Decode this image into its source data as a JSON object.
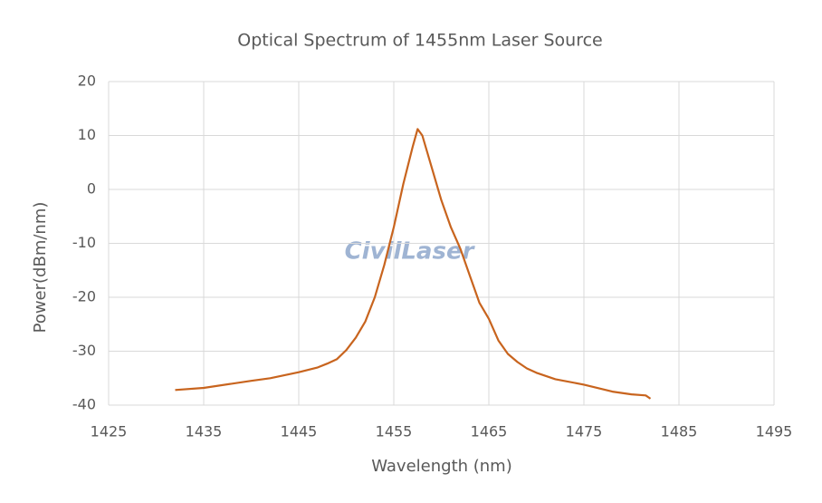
{
  "chart_data": {
    "type": "line",
    "title": "Optical Spectrum of 1455nm Laser Source",
    "x_label": "Wavelength (nm)",
    "y_label": "Power(dBm/nm)",
    "watermark": "CivilLaser",
    "x": [
      1432,
      1435,
      1440,
      1442,
      1445,
      1447,
      1448,
      1449,
      1450,
      1451,
      1452,
      1453,
      1454,
      1455,
      1456,
      1457,
      1457.5,
      1458,
      1459,
      1460,
      1461,
      1462,
      1463,
      1464,
      1465,
      1466,
      1467,
      1468,
      1469,
      1470,
      1472,
      1475,
      1478,
      1480,
      1481.5,
      1482
    ],
    "series": [
      {
        "name": "Power",
        "color": "#c8641e",
        "values": [
          -37.2,
          -36.8,
          -35.5,
          -35,
          -33.9,
          -33,
          -32.3,
          -31.5,
          -29.8,
          -27.5,
          -24.5,
          -20,
          -14,
          -7,
          1,
          8,
          11.2,
          10,
          4,
          -2,
          -7,
          -11,
          -16,
          -21,
          -24,
          -28,
          -30.5,
          -32,
          -33.2,
          -34,
          -35.2,
          -36.2,
          -37.5,
          -38,
          -38.2,
          -38.8
        ]
      }
    ],
    "xlim": [
      1425,
      1495
    ],
    "xticks": [
      1425,
      1435,
      1445,
      1455,
      1465,
      1475,
      1485,
      1495
    ],
    "ylim": [
      -40,
      20
    ],
    "yticks": [
      -40,
      -30,
      -20,
      -10,
      0,
      10,
      20
    ],
    "grid": true
  }
}
